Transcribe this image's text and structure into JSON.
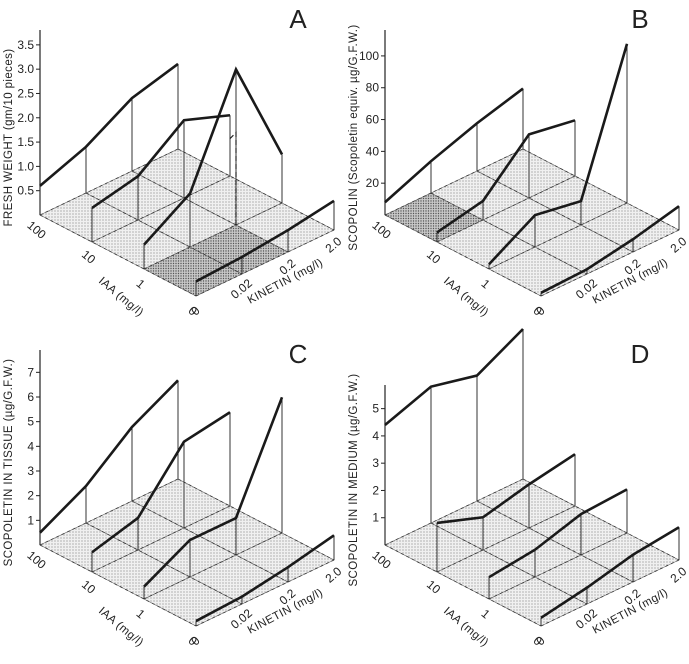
{
  "chart_data": [
    {
      "panel": "A",
      "type": "3d-line",
      "ylabel": "FRESH WEIGHT (gm/10 pieces)",
      "yticks": [
        "0.5",
        "1.0",
        "1.5",
        "2.0",
        "2.5",
        "3.0",
        "3.5"
      ],
      "ylim": [
        0,
        3.6
      ],
      "iaa_label": "IAA (mg/l)",
      "iaa_levels": [
        "100",
        "10",
        "1",
        "0"
      ],
      "kinetin_label": "KINETIN (mg/l)",
      "kinetin_levels": [
        "0",
        "0.02",
        "0.2",
        "2.0"
      ],
      "series": [
        {
          "iaa": "100",
          "values": [
            0.6,
            0.95,
            1.5,
            1.75
          ]
        },
        {
          "iaa": "10",
          "values": [
            0.7,
            0.9,
            1.6,
            1.25
          ]
        },
        {
          "iaa": "1",
          "values": [
            0.5,
            1.1,
            3.2,
            1.0
          ]
        },
        {
          "iaa": "0",
          "values": [
            0.3,
            0.35,
            0.45,
            0.6
          ]
        }
      ],
      "dashed_marker": {
        "iaa": "1",
        "kinetin": "0.2",
        "value": 1.9
      }
    },
    {
      "panel": "B",
      "type": "3d-line",
      "ylabel": "SCOPOLIN (Scopoletin equiv. µg/G.F.W.)",
      "yticks": [
        "20",
        "40",
        "60",
        "80",
        "100"
      ],
      "ylim": [
        0,
        110
      ],
      "iaa_label": "IAA (mg/l)",
      "iaa_levels": [
        "100",
        "10",
        "1",
        "0"
      ],
      "kinetin_label": "KINETIN (mg/l)",
      "kinetin_levels": [
        "0",
        "0.02",
        "0.2",
        "2.0"
      ],
      "series": [
        {
          "iaa": "100",
          "values": [
            8,
            20,
            30,
            38
          ]
        },
        {
          "iaa": "10",
          "values": [
            6,
            12,
            40,
            35
          ]
        },
        {
          "iaa": "1",
          "values": [
            3,
            20,
            15,
            100
          ]
        },
        {
          "iaa": "0",
          "values": [
            2,
            3,
            8,
            15
          ]
        }
      ]
    },
    {
      "panel": "C",
      "type": "3d-line",
      "ylabel": "SCOPOLETIN IN TISSUE (µg/G.F.W.)",
      "yticks": [
        "1",
        "2",
        "3",
        "4",
        "5",
        "6",
        "7"
      ],
      "ylim": [
        0,
        7.5
      ],
      "iaa_label": "IAA (mg/l)",
      "iaa_levels": [
        "100",
        "10",
        "1",
        "0"
      ],
      "kinetin_label": "KINETIN (mg/l)",
      "kinetin_levels": [
        "0",
        "0.02",
        "0.2",
        "2.0"
      ],
      "series": [
        {
          "iaa": "100",
          "values": [
            0.5,
            1.5,
            3.0,
            4.0
          ]
        },
        {
          "iaa": "10",
          "values": [
            0.8,
            1.3,
            3.5,
            3.8
          ]
        },
        {
          "iaa": "1",
          "values": [
            0.5,
            1.5,
            1.5,
            5.5
          ]
        },
        {
          "iaa": "0",
          "values": [
            0.2,
            0.3,
            0.6,
            1.0
          ]
        }
      ]
    },
    {
      "panel": "D",
      "type": "3d-line",
      "ylabel": "SCOPOLETIN IN MEDIUM (µg/G.F.W.)",
      "yticks": [
        "1",
        "2",
        "3",
        "4",
        "5"
      ],
      "ylim": [
        0,
        5.5
      ],
      "iaa_label": "IAA (mg/l)",
      "iaa_levels": [
        "100",
        "10",
        "1",
        "0"
      ],
      "kinetin_label": "KINETIN (mg/l)",
      "kinetin_levels": [
        "0",
        "0.02",
        "0.2",
        "2.0"
      ],
      "series": [
        {
          "iaa": "100",
          "values": [
            4.4,
            5.0,
            4.6,
            5.5
          ]
        },
        {
          "iaa": "10",
          "values": [
            1.8,
            1.2,
            1.6,
            1.9
          ]
        },
        {
          "iaa": "1",
          "values": [
            0.8,
            1.0,
            1.5,
            1.6
          ]
        },
        {
          "iaa": "0",
          "values": [
            0.3,
            0.6,
            1.0,
            1.2
          ]
        }
      ]
    }
  ]
}
